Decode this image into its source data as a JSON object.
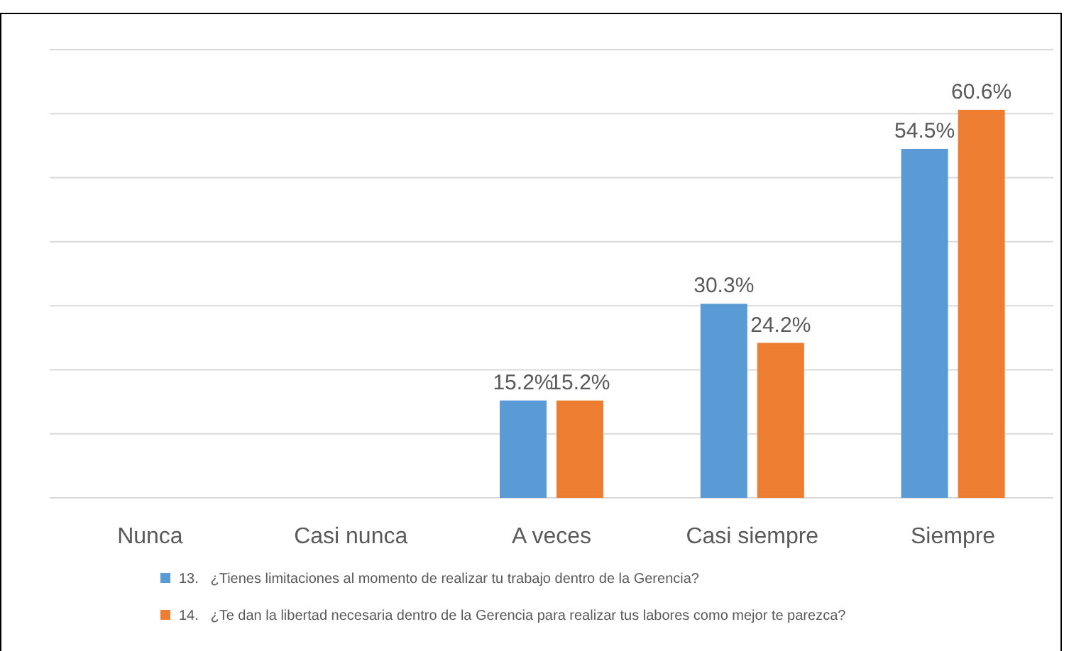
{
  "chart_data": {
    "type": "bar",
    "categories": [
      "Nunca",
      "Casi nunca",
      "A veces",
      "Casi siempre",
      "Siempre"
    ],
    "series": [
      {
        "name": "13.   ¿Tienes limitaciones al momento de realizar tu trabajo dentro de la Gerencia?",
        "color": "#5b9bd5",
        "values": [
          0,
          0,
          15.2,
          30.3,
          54.5
        ],
        "value_labels": [
          null,
          null,
          "15.2%",
          "30.3%",
          "54.5%"
        ]
      },
      {
        "name": "14.   ¿Te dan la libertad necesaria dentro de la Gerencia para realizar tus labores como mejor te parezca?",
        "color": "#ed7d31",
        "values": [
          0,
          0,
          15.2,
          24.2,
          60.6
        ],
        "value_labels": [
          null,
          null,
          "15.2%",
          "24.2%",
          "60.6%"
        ]
      }
    ],
    "ylim": [
      0,
      70
    ],
    "yticks": [
      {
        "value": 0,
        "label": null
      },
      {
        "value": 10,
        "label": null
      },
      {
        "value": 20,
        "label": null
      },
      {
        "value": 30,
        "label": null
      },
      {
        "value": 40,
        "label": null
      },
      {
        "value": 50,
        "label": null
      },
      {
        "value": 60,
        "label": null
      },
      {
        "value": 70,
        "label": null
      }
    ],
    "grid": "y",
    "tick_labels": "x",
    "legend": "bottom"
  }
}
